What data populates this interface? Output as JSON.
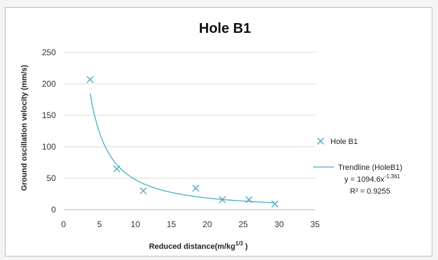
{
  "chart_data": {
    "type": "scatter",
    "title": "Hole B1",
    "xlabel": "Reduced distance(m/kg",
    "xlabel_sup": "1/3",
    "xlabel_end": " )",
    "ylabel": "Ground oscillation velocity (mm/s)",
    "xlim": [
      0,
      35
    ],
    "ylim": [
      0,
      250
    ],
    "x_ticks": [
      0,
      5,
      10,
      15,
      20,
      25,
      30,
      35
    ],
    "y_ticks": [
      0,
      50,
      100,
      150,
      200,
      250
    ],
    "grid": "horizontal",
    "legend_position": "right",
    "series": [
      {
        "name": "Hole B1",
        "marker": "x",
        "color": "#4bacc6",
        "x": [
          3.7,
          7.4,
          11.1,
          18.4,
          22.1,
          25.8,
          29.4
        ],
        "y": [
          207,
          65,
          30,
          34,
          16,
          16,
          9
        ]
      }
    ],
    "trendline": {
      "name": "Trendline (HoleB1)",
      "type": "power",
      "coefficient": 1094.6,
      "exponent": -1.361,
      "x_range": [
        3.7,
        29.4
      ],
      "color": "#4bacc6",
      "equation_base": "y = 1094.6x",
      "equation_exponent": "-1.361",
      "r_squared_label": "R² = 0.9255"
    }
  }
}
